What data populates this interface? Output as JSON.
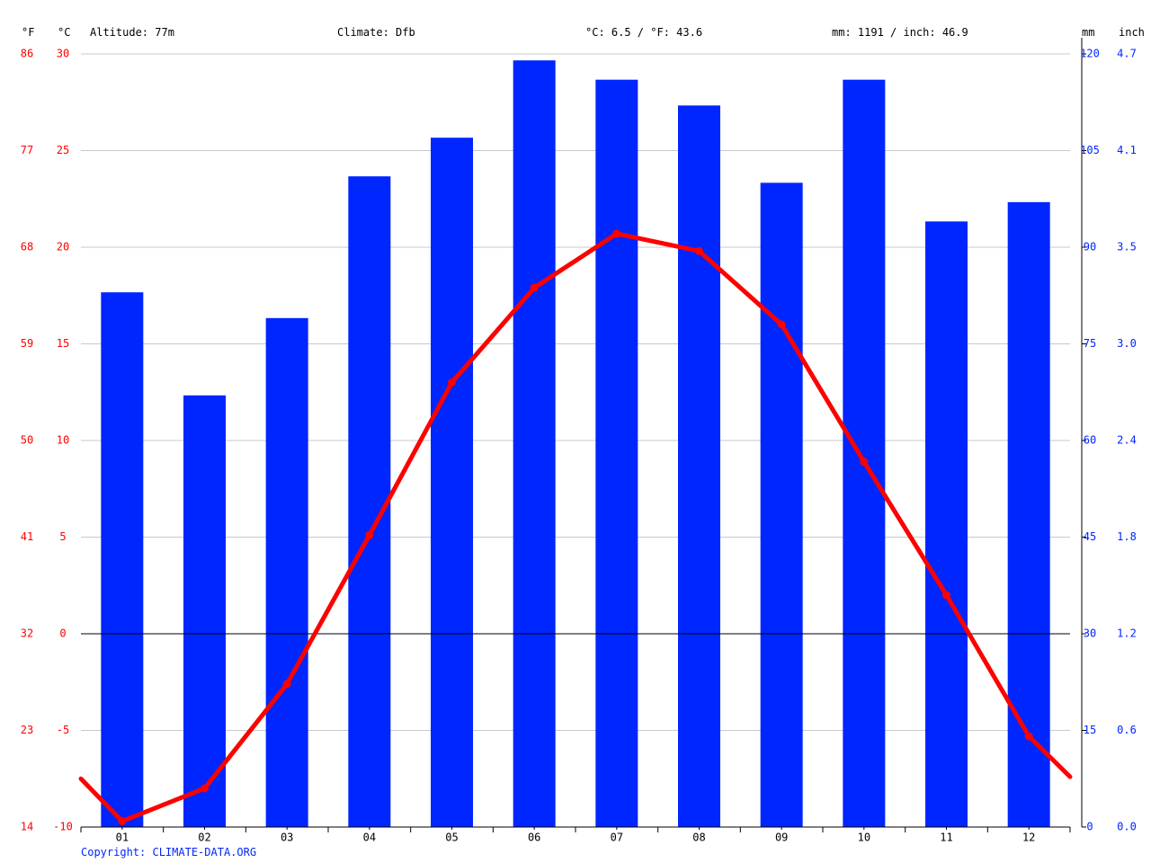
{
  "header": {
    "unit_f": "°F",
    "unit_c": "°C",
    "altitude": "Altitude: 77m",
    "climate": "Climate: Dfb",
    "temp_avg": "°C: 6.5 / °F: 43.6",
    "precip_total": "mm: 1191 / inch: 46.9",
    "unit_mm": "mm",
    "unit_inch": "inch"
  },
  "copyright": "Copyright: CLIMATE-DATA.ORG",
  "colors": {
    "temperature": "#ff0000",
    "precipitation": "#0026ff",
    "left_axis_text": "#ff0000",
    "right_axis_text": "#0026ff",
    "grid": "#c8c8c8",
    "zero_line": "#000000",
    "copyright": "#0026ff"
  },
  "chart_data": {
    "type": "bar+line",
    "categories": [
      "01",
      "02",
      "03",
      "04",
      "05",
      "06",
      "07",
      "08",
      "09",
      "10",
      "11",
      "12"
    ],
    "series": [
      {
        "type": "bar",
        "axis": "right",
        "unit": "mm",
        "values": [
          83,
          67,
          79,
          101,
          107,
          119,
          116,
          112,
          100,
          116,
          94,
          97
        ]
      },
      {
        "type": "line",
        "axis": "left",
        "unit": "°C",
        "values": [
          -9.7,
          -8.0,
          -2.6,
          5.1,
          13.0,
          17.9,
          20.7,
          19.8,
          16.0,
          8.9,
          2.0,
          -5.3
        ],
        "line_start": -7.5,
        "line_end": -7.4
      }
    ],
    "left_axis_c": {
      "ticks": [
        "30",
        "25",
        "20",
        "15",
        "10",
        "5",
        "0",
        "-5",
        "-10"
      ],
      "range": [
        -10,
        30
      ]
    },
    "left_axis_f": {
      "ticks": [
        "86",
        "77",
        "68",
        "59",
        "50",
        "41",
        "32",
        "23",
        "14"
      ]
    },
    "right_axis_mm": {
      "ticks": [
        "120",
        "105",
        "90",
        "75",
        "60",
        "45",
        "30",
        "15",
        "0"
      ],
      "range": [
        0,
        120
      ]
    },
    "right_axis_inch": {
      "ticks": [
        "4.7",
        "4.1",
        "3.5",
        "3.0",
        "2.4",
        "1.8",
        "1.2",
        "0.6",
        "0.0"
      ]
    },
    "grid": true,
    "legend": "none"
  }
}
